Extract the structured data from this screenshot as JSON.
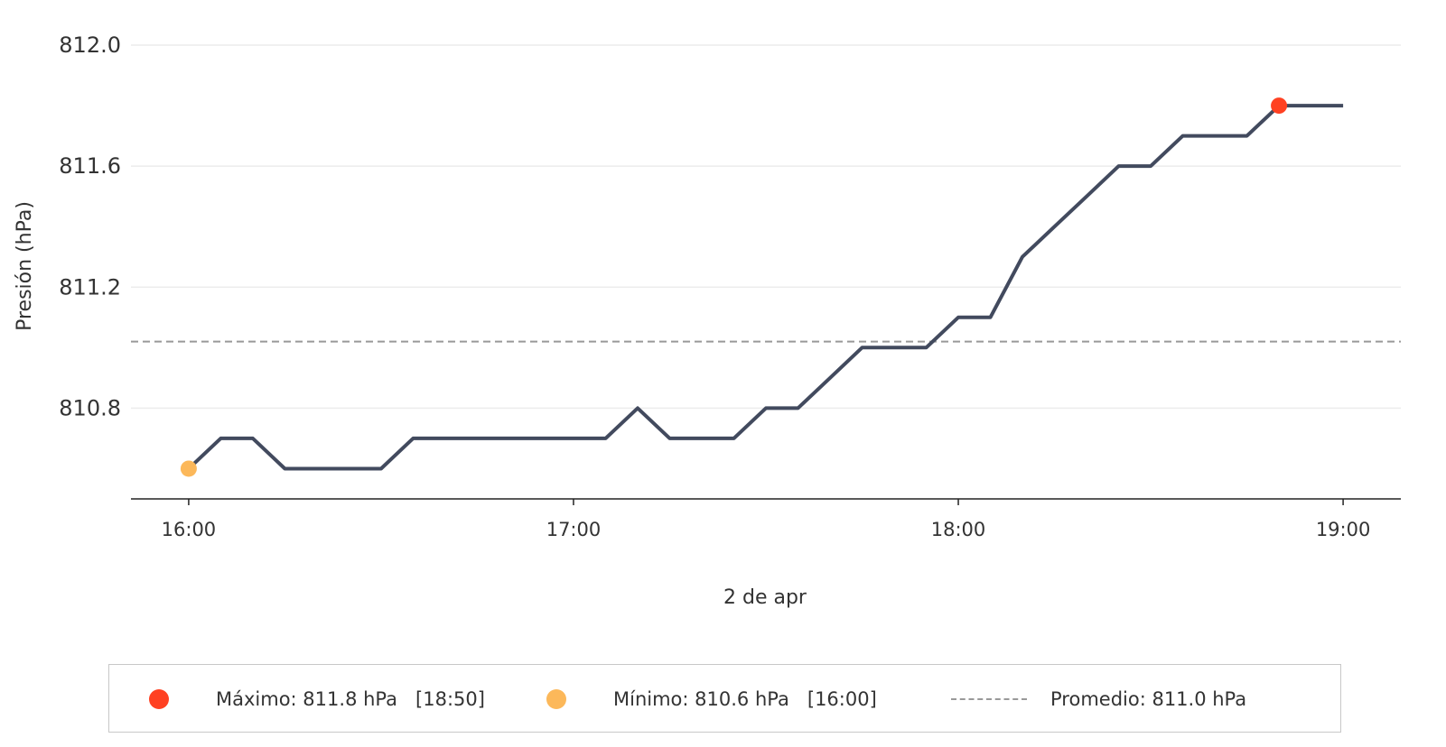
{
  "chart_data": {
    "type": "line",
    "xlabel": "2 de apr",
    "ylabel": "Presión (hPa)",
    "x_ticks": [
      "16:00",
      "17:00",
      "18:00",
      "19:00"
    ],
    "y_ticks": [
      "810.8",
      "811.2",
      "811.6",
      "812.0"
    ],
    "xlim": [
      "15:51",
      "19:09"
    ],
    "ylim": [
      810.5,
      812.0
    ],
    "grid": "horizontal",
    "legend_placement": "bottom",
    "series": [
      {
        "color": "#424a5e",
        "x": [
          "16:00",
          "16:05",
          "16:10",
          "16:15",
          "16:20",
          "16:25",
          "16:30",
          "16:35",
          "16:40",
          "16:45",
          "16:50",
          "16:55",
          "17:00",
          "17:05",
          "17:10",
          "17:15",
          "17:20",
          "17:25",
          "17:30",
          "17:35",
          "17:40",
          "17:45",
          "17:50",
          "17:55",
          "18:00",
          "18:05",
          "18:10",
          "18:15",
          "18:20",
          "18:25",
          "18:30",
          "18:35",
          "18:40",
          "18:45",
          "18:50",
          "18:55",
          "19:00"
        ],
        "y": [
          810.6,
          810.7,
          810.7,
          810.6,
          810.6,
          810.6,
          810.6,
          810.7,
          810.7,
          810.7,
          810.7,
          810.7,
          810.7,
          810.7,
          810.8,
          810.7,
          810.7,
          810.7,
          810.8,
          810.8,
          810.9,
          811.0,
          811.0,
          811.0,
          811.1,
          811.1,
          811.3,
          811.4,
          811.5,
          811.6,
          811.6,
          811.7,
          811.7,
          811.7,
          811.8,
          811.8,
          811.8
        ]
      }
    ],
    "max": {
      "value": 811.8,
      "time": "18:50",
      "color": "#ff4122"
    },
    "min": {
      "value": 810.6,
      "time": "16:00",
      "color": "#fcb85a"
    },
    "mean": {
      "value": 811.02,
      "color": "#999999"
    }
  },
  "legend": {
    "max_label": "Máximo: 811.8 hPa   [18:50]",
    "min_label": "Mínimo: 810.6 hPa   [16:00]",
    "mean_label": "Promedio: 811.0 hPa"
  }
}
